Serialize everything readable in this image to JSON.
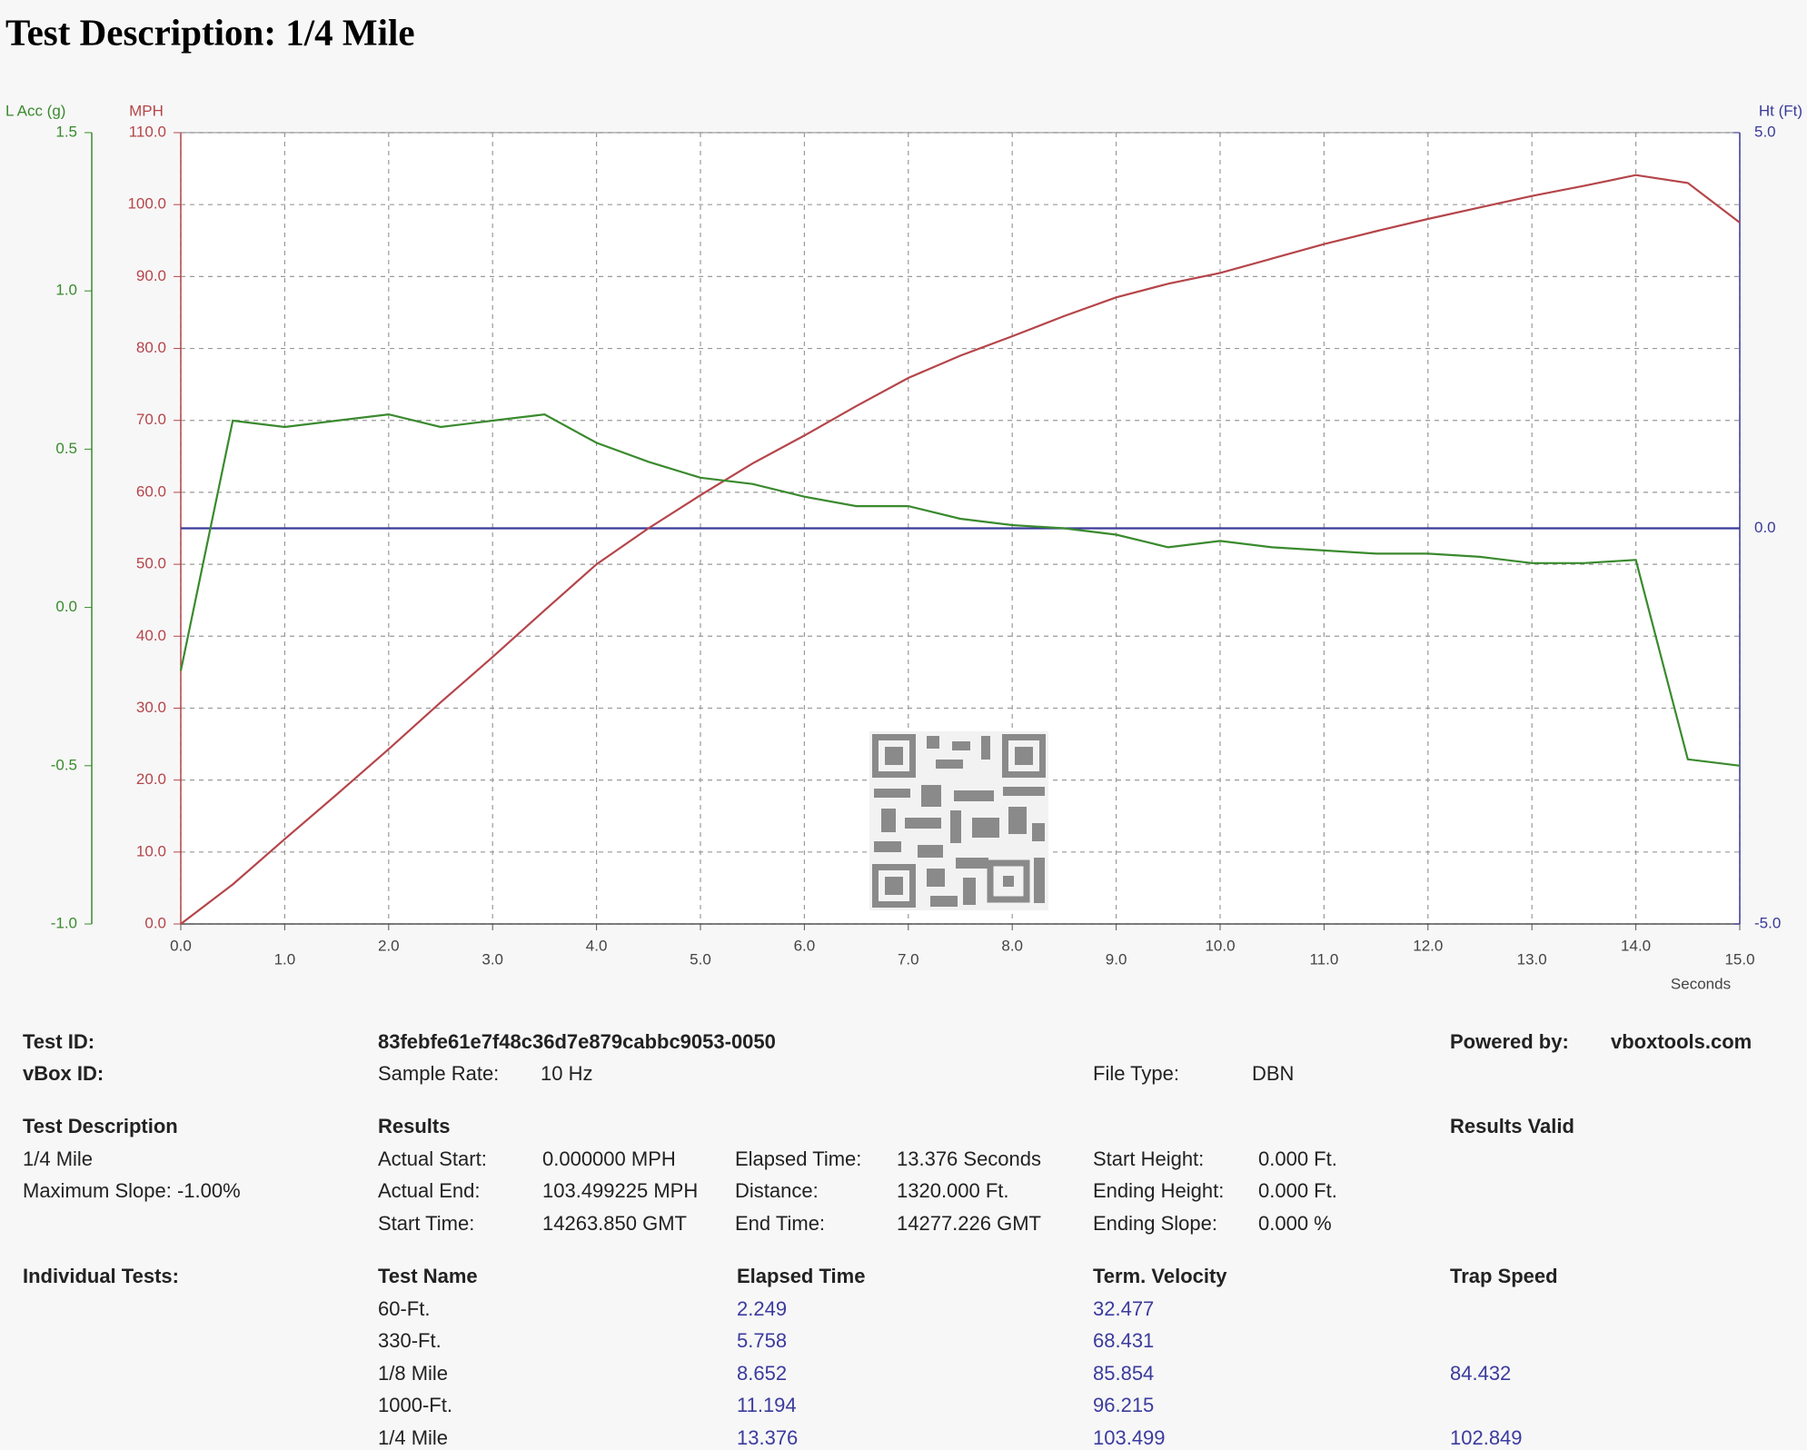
{
  "title": "Test Description: 1/4 Mile",
  "chart_data": {
    "type": "line",
    "x": [
      0,
      0.5,
      1,
      1.5,
      2,
      2.5,
      3,
      3.5,
      4,
      4.5,
      5,
      5.5,
      6,
      6.5,
      7,
      7.5,
      8,
      8.5,
      9,
      9.5,
      10,
      10.5,
      11,
      11.5,
      12,
      12.5,
      13,
      13.5,
      14,
      14.5,
      15
    ],
    "xlabel": "Seconds",
    "xlim": [
      0,
      15
    ],
    "xticks": [
      {
        "value": 0,
        "label": "0.0"
      },
      {
        "value": 1,
        "label": "1.0"
      },
      {
        "value": 2,
        "label": "2.0"
      },
      {
        "value": 3,
        "label": "3.0"
      },
      {
        "value": 4,
        "label": "4.0"
      },
      {
        "value": 5,
        "label": "5.0"
      },
      {
        "value": 6,
        "label": "6.0"
      },
      {
        "value": 7,
        "label": "7.0"
      },
      {
        "value": 8,
        "label": "8.0"
      },
      {
        "value": 9,
        "label": "9.0"
      },
      {
        "value": 10,
        "label": "10.0"
      },
      {
        "value": 11,
        "label": "11.0"
      },
      {
        "value": 12,
        "label": "12.0"
      },
      {
        "value": 13,
        "label": "13.0"
      },
      {
        "value": 14,
        "label": "14.0"
      },
      {
        "value": 15,
        "label": "15.0"
      }
    ],
    "ylabel": "MPH",
    "ycolor": "#b5454a",
    "ylim": [
      0,
      110
    ],
    "yticks": [
      {
        "value": 0,
        "label": "0.0"
      },
      {
        "value": 10,
        "label": "10.0"
      },
      {
        "value": 20,
        "label": "20.0"
      },
      {
        "value": 30,
        "label": "30.0"
      },
      {
        "value": 40,
        "label": "40.0"
      },
      {
        "value": 50,
        "label": "50.0"
      },
      {
        "value": 60,
        "label": "60.0"
      },
      {
        "value": 70,
        "label": "70.0"
      },
      {
        "value": 80,
        "label": "80.0"
      },
      {
        "value": 90,
        "label": "90.0"
      },
      {
        "value": 100,
        "label": "100.0"
      },
      {
        "value": 110,
        "label": "110.0"
      }
    ],
    "y2label": "Ht (Ft)",
    "y2color": "#3a3a99",
    "y2lim": [
      -5,
      5
    ],
    "y2ticks": [
      {
        "value": -5,
        "label": "-5.0"
      },
      {
        "value": 0,
        "label": "0.0"
      },
      {
        "value": 5,
        "label": "5.0"
      }
    ],
    "y3label": "L Acc (g)",
    "y3color": "#3a8a2e",
    "y3lim": [
      -1,
      1.5
    ],
    "y3ticks": [
      {
        "value": -1,
        "label": "-1.0"
      },
      {
        "value": -0.5,
        "label": "-0.5"
      },
      {
        "value": 0,
        "label": "0.0"
      },
      {
        "value": 0.5,
        "label": "0.5"
      },
      {
        "value": 1,
        "label": "1.0"
      },
      {
        "value": 1.5,
        "label": "1.5"
      }
    ],
    "grid": true,
    "series": [
      {
        "name": "Ht (Ft)",
        "axis": "y2",
        "color": "#3a3a99",
        "values": [
          0,
          0,
          0,
          0,
          0,
          0,
          0,
          0,
          0,
          0,
          0,
          0,
          0,
          0,
          0,
          0,
          0,
          0,
          0,
          0,
          0,
          0,
          0,
          0,
          0,
          0,
          0,
          0,
          0,
          0,
          0
        ]
      },
      {
        "name": "MPH",
        "axis": "y",
        "color": "#b5454a",
        "values": [
          0,
          5.5,
          11.8,
          18,
          24.3,
          30.8,
          37.1,
          43.6,
          50,
          55,
          59.6,
          64,
          67.9,
          72,
          75.9,
          79,
          81.7,
          84.5,
          87.1,
          89,
          90.5,
          92.5,
          94.5,
          96.3,
          98,
          99.6,
          101.2,
          102.6,
          104.1,
          103,
          97.5
        ]
      },
      {
        "name": "L Acc (g)",
        "axis": "y3",
        "color": "#3a8a2e",
        "values": [
          -0.2,
          0.59,
          0.57,
          0.59,
          0.61,
          0.57,
          0.59,
          0.61,
          0.52,
          0.46,
          0.41,
          0.39,
          0.35,
          0.32,
          0.32,
          0.28,
          0.26,
          0.25,
          0.23,
          0.19,
          0.21,
          0.19,
          0.18,
          0.17,
          0.17,
          0.16,
          0.14,
          0.14,
          0.15,
          -0.48,
          -0.5
        ]
      }
    ]
  },
  "report": {
    "test_id": {
      "label": "Test ID:",
      "value": "83febfe61e7f48c36d7e879cabbc9053-0050"
    },
    "vbox_id": {
      "label": "vBox ID:"
    },
    "sample_rate": {
      "label": "Sample Rate:",
      "value": "10 Hz"
    },
    "file_type": {
      "label": "File Type:",
      "value": "DBN"
    },
    "powered_by": {
      "label": "Powered by:",
      "value": "vboxtools.com"
    },
    "test_description": {
      "heading": "Test Description",
      "lines": [
        "1/4 Mile",
        "Maximum Slope:  -1.00%"
      ]
    },
    "results": {
      "heading": "Results",
      "valid": "Results Valid",
      "rows": [
        {
          "color": "#3b3b9e",
          "cells": [
            [
              "Actual Start:",
              "0.000000 MPH"
            ],
            [
              "Elapsed Time:",
              "13.376 Seconds"
            ],
            [
              "Start Height:",
              "0.000 Ft."
            ]
          ]
        },
        {
          "color": "#3b3b9e",
          "cells": [
            [
              "Actual End:",
              "103.499225 MPH"
            ],
            [
              "Distance:",
              "1320.000 Ft."
            ],
            [
              "Ending Height:",
              "0.000 Ft."
            ]
          ]
        },
        {
          "color": "#222222",
          "cells": [
            [
              "Start Time:",
              "14263.850 GMT"
            ],
            [
              "End Time:",
              "14277.226 GMT"
            ],
            [
              "Ending Slope:",
              "0.000 %"
            ]
          ]
        }
      ]
    },
    "individual_tests": {
      "heading": "Individual Tests:",
      "columns": [
        "Test Name",
        "Elapsed Time",
        "Term. Velocity",
        "Trap Speed"
      ],
      "rows": [
        {
          "name": "60-Ft.",
          "elapsed": "2.249",
          "velocity": "32.477"
        },
        {
          "name": "330-Ft.",
          "elapsed": "5.758",
          "velocity": "68.431"
        },
        {
          "name": "1/8 Mile",
          "elapsed": "8.652",
          "velocity": "85.854",
          "trap": "84.432"
        },
        {
          "name": "1000-Ft.",
          "elapsed": "11.194",
          "velocity": "96.215"
        },
        {
          "name": "1/4 Mile",
          "elapsed": "13.376",
          "velocity": "103.499",
          "trap": "102.849"
        }
      ]
    }
  }
}
